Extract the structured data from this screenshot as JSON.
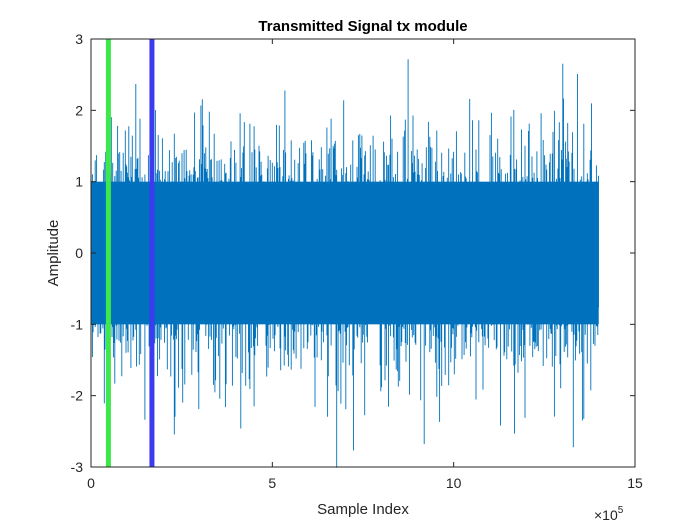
{
  "chart_data": {
    "type": "line",
    "title": "Transmitted Signal tx module",
    "xlabel": "Sample Index",
    "ylabel": "Amplitude",
    "x_exponent_label": "×10",
    "x_exponent_power": "5",
    "xlim": [
      0,
      15
    ],
    "ylim": [
      -3,
      3
    ],
    "x_ticks": [
      0,
      5,
      10,
      15
    ],
    "x_tick_labels": [
      "0",
      "5",
      "10",
      "15"
    ],
    "y_ticks": [
      -3,
      -2,
      -1,
      0,
      1,
      2,
      3
    ],
    "y_tick_labels": [
      "-3",
      "-2",
      "-1",
      "0",
      "1",
      "2",
      "3"
    ],
    "grid": false,
    "series": [
      {
        "color": "#0072BD",
        "x_range": [
          0,
          14
        ],
        "typical_amplitude": 1.0,
        "peak_amplitude": 2.85
      }
    ],
    "vertical_markers": [
      {
        "x": 0.48,
        "color": "#3CE84A"
      },
      {
        "x": 1.68,
        "color": "#3B3BEF"
      }
    ]
  }
}
